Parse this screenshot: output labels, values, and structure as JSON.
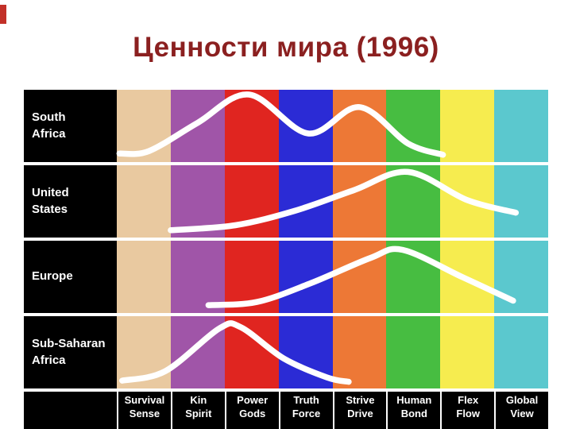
{
  "title": {
    "text": "Ценности мира (1996)",
    "color": "#8B2020"
  },
  "decor": {
    "accent_color": "#C23028"
  },
  "chart": {
    "curve_color": "#FFFFFF",
    "regions": [
      {
        "label": [
          "South",
          "Africa"
        ]
      },
      {
        "label": [
          "United",
          "States"
        ]
      },
      {
        "label": [
          "Europe"
        ]
      },
      {
        "label": [
          "Sub-Saharan",
          "Africa"
        ]
      }
    ],
    "columns": [
      {
        "label": [
          "Survival",
          "Sense"
        ],
        "color": "#E9C9A0"
      },
      {
        "label": [
          "Kin",
          "Spirit"
        ],
        "color": "#A055A8"
      },
      {
        "label": [
          "Power",
          "Gods"
        ],
        "color": "#E02520"
      },
      {
        "label": [
          "Truth",
          "Force"
        ],
        "color": "#2B2BD5"
      },
      {
        "label": [
          "Strive",
          "Drive"
        ],
        "color": "#ED7836"
      },
      {
        "label": [
          "Human",
          "Bond"
        ],
        "color": "#47BD41"
      },
      {
        "label": [
          "Flex",
          "Flow"
        ],
        "color": "#F6EC4F"
      },
      {
        "label": [
          "Global",
          "View"
        ],
        "color": "#5BC8CE"
      }
    ]
  },
  "chart_data": {
    "type": "line",
    "title": "Ценности мира (1996)",
    "categories": [
      "Survival Sense",
      "Kin Spirit",
      "Power Gods",
      "Truth Force",
      "Strive Drive",
      "Human Bond",
      "Flex Flow",
      "Global View"
    ],
    "rows": [
      "South Africa",
      "United States",
      "Europe",
      "Sub-Saharan Africa"
    ],
    "value_range": [
      0,
      1
    ],
    "point_format": "[column_position_in_band_widths_from_first_band_left_edge, relative_height_within_row]",
    "series": [
      {
        "name": "South Africa",
        "points": [
          [
            0.05,
            0.06
          ],
          [
            0.6,
            0.1
          ],
          [
            1.5,
            0.55
          ],
          [
            2.45,
            1.0
          ],
          [
            3.55,
            0.38
          ],
          [
            4.5,
            0.8
          ],
          [
            5.4,
            0.22
          ],
          [
            6.05,
            0.04
          ]
        ]
      },
      {
        "name": "United States",
        "points": [
          [
            1.0,
            0.04
          ],
          [
            2.2,
            0.12
          ],
          [
            3.3,
            0.35
          ],
          [
            4.4,
            0.68
          ],
          [
            5.4,
            0.97
          ],
          [
            6.5,
            0.52
          ],
          [
            7.4,
            0.32
          ]
        ]
      },
      {
        "name": "Europe",
        "points": [
          [
            1.7,
            0.05
          ],
          [
            2.6,
            0.1
          ],
          [
            3.6,
            0.4
          ],
          [
            4.7,
            0.8
          ],
          [
            5.3,
            0.93
          ],
          [
            6.4,
            0.5
          ],
          [
            7.35,
            0.12
          ]
        ]
      },
      {
        "name": "Sub-Saharan Africa",
        "points": [
          [
            0.1,
            0.05
          ],
          [
            0.9,
            0.2
          ],
          [
            1.9,
            0.88
          ],
          [
            2.3,
            0.9
          ],
          [
            3.1,
            0.4
          ],
          [
            3.9,
            0.1
          ],
          [
            4.3,
            0.03
          ]
        ]
      }
    ]
  }
}
